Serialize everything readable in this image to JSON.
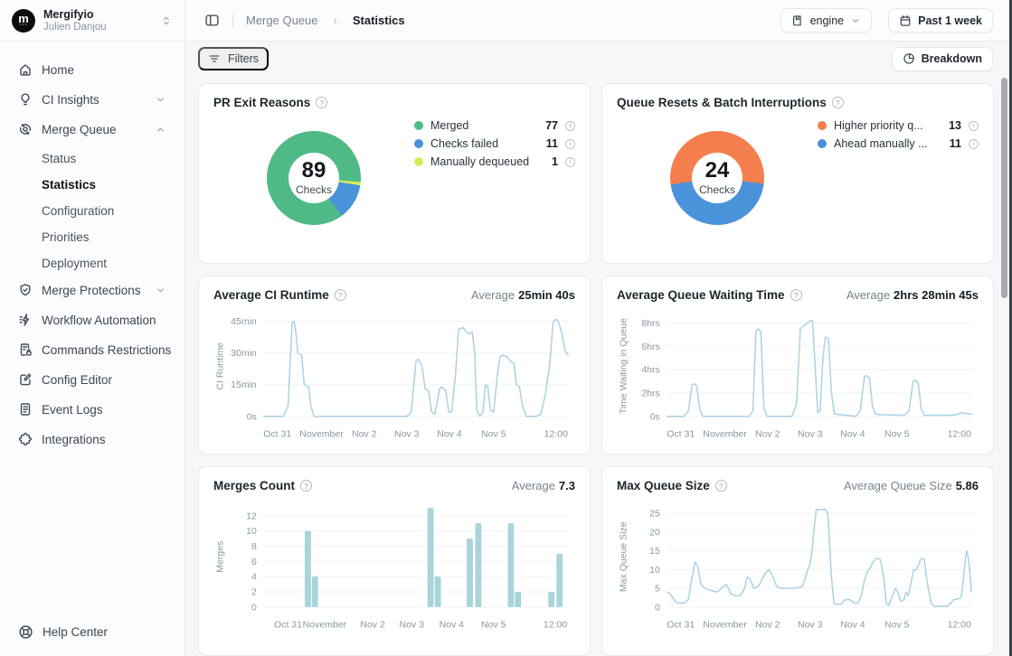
{
  "glyphs": {
    "help": "?",
    "info": "i",
    "breadcrumb_sep": "›",
    "avatar_letter": "m",
    "avatar_dots": "···"
  },
  "sidebar": {
    "account": {
      "org": "Mergifyio",
      "user": "Julien Danjou"
    },
    "items": [
      {
        "label": "Home",
        "icon": "home-icon"
      },
      {
        "label": "CI Insights",
        "icon": "lightbulb-icon",
        "chevron": "down"
      },
      {
        "label": "Merge Queue",
        "icon": "merge-queue-icon",
        "chevron": "up",
        "children": [
          "Status",
          "Statistics",
          "Configuration",
          "Priorities",
          "Deployment"
        ]
      },
      {
        "label": "Merge Protections",
        "icon": "shield-icon",
        "chevron": "down"
      },
      {
        "label": "Workflow Automation",
        "icon": "workflow-icon"
      },
      {
        "label": "Commands Restrictions",
        "icon": "commands-restrictions-icon"
      },
      {
        "label": "Config Editor",
        "icon": "config-editor-icon"
      },
      {
        "label": "Event Logs",
        "icon": "event-logs-icon"
      },
      {
        "label": "Integrations",
        "icon": "integrations-icon"
      }
    ],
    "active_item": "Statistics",
    "help_label": "Help Center"
  },
  "topbar": {
    "breadcrumb_parent": "Merge Queue",
    "breadcrumb_current": "Statistics",
    "repo_selector": "engine",
    "date_range": "Past 1 week"
  },
  "toolbar": {
    "filters_label": "Filters",
    "breakdown_label": "Breakdown"
  },
  "chart_data": [
    {
      "type": "pie",
      "title": "PR Exit Reasons",
      "center_value": "89",
      "center_label": "Checks",
      "start_angle": 95,
      "segments": [
        {
          "label": "Merged",
          "value": 77,
          "color": "#4fba85"
        },
        {
          "label": "Checks failed",
          "value": 11,
          "color": "#4a93da"
        },
        {
          "label": "Manually dequeued",
          "value": 1,
          "color": "#d9ed56"
        }
      ]
    },
    {
      "type": "pie",
      "title": "Queue Resets & Batch Interruptions",
      "center_value": "24",
      "center_label": "Checks",
      "start_angle": 97,
      "segments": [
        {
          "label": "Higher priority q...",
          "value": 13,
          "color": "#f47e4d"
        },
        {
          "label": "Ahead manually ...",
          "value": 11,
          "color": "#4a93da"
        }
      ]
    },
    {
      "type": "line",
      "title": "Average CI Runtime",
      "average_label": "Average",
      "average_value": "25min 40s",
      "ylabel": "CI Runtime",
      "ymax": 47.5,
      "line_color": "#aed3e5",
      "grid": true,
      "yticks": [
        {
          "v": 0,
          "label": "0s"
        },
        {
          "v": 15,
          "label": "15min"
        },
        {
          "v": 30,
          "label": "30min"
        },
        {
          "v": 45,
          "label": "45min"
        }
      ],
      "xticks": [
        {
          "x": 0.045,
          "label": "Oct 31"
        },
        {
          "x": 0.19,
          "label": "November"
        },
        {
          "x": 0.33,
          "label": "Nov 2"
        },
        {
          "x": 0.47,
          "label": "Nov 3"
        },
        {
          "x": 0.61,
          "label": "Nov 4"
        },
        {
          "x": 0.755,
          "label": "Nov 5"
        },
        {
          "x": 0.96,
          "label": "12:00"
        }
      ],
      "points": [
        [
          0,
          0
        ],
        [
          0.065,
          0
        ],
        [
          0.08,
          5
        ],
        [
          0.093,
          44
        ],
        [
          0.1,
          45
        ],
        [
          0.107,
          38
        ],
        [
          0.112,
          30
        ],
        [
          0.125,
          29
        ],
        [
          0.133,
          15
        ],
        [
          0.147,
          14
        ],
        [
          0.155,
          5
        ],
        [
          0.165,
          0
        ],
        [
          0.47,
          0
        ],
        [
          0.485,
          2
        ],
        [
          0.5,
          26
        ],
        [
          0.508,
          27
        ],
        [
          0.52,
          24
        ],
        [
          0.53,
          13
        ],
        [
          0.542,
          12
        ],
        [
          0.552,
          2
        ],
        [
          0.562,
          1
        ],
        [
          0.578,
          13
        ],
        [
          0.585,
          14
        ],
        [
          0.598,
          12
        ],
        [
          0.608,
          2
        ],
        [
          0.617,
          2
        ],
        [
          0.63,
          20
        ],
        [
          0.64,
          41
        ],
        [
          0.655,
          42
        ],
        [
          0.665,
          40
        ],
        [
          0.675,
          39
        ],
        [
          0.685,
          40
        ],
        [
          0.693,
          30
        ],
        [
          0.7,
          3
        ],
        [
          0.71,
          0
        ],
        [
          0.72,
          2
        ],
        [
          0.728,
          15
        ],
        [
          0.736,
          14
        ],
        [
          0.745,
          3
        ],
        [
          0.755,
          2
        ],
        [
          0.768,
          20
        ],
        [
          0.776,
          28
        ],
        [
          0.785,
          29
        ],
        [
          0.8,
          28
        ],
        [
          0.812,
          26
        ],
        [
          0.822,
          25
        ],
        [
          0.83,
          15
        ],
        [
          0.84,
          14
        ],
        [
          0.85,
          5
        ],
        [
          0.862,
          0
        ],
        [
          0.895,
          0
        ],
        [
          0.91,
          1
        ],
        [
          0.925,
          10
        ],
        [
          0.94,
          25
        ],
        [
          0.95,
          44
        ],
        [
          0.958,
          46
        ],
        [
          0.968,
          45
        ],
        [
          0.978,
          40
        ],
        [
          0.99,
          31
        ],
        [
          1,
          29
        ]
      ]
    },
    {
      "type": "line",
      "title": "Average Queue Waiting Time",
      "average_label": "Average",
      "average_value": "2hrs 28min 45s",
      "ylabel": "Time Waiting in Queue",
      "ymax": 8.6,
      "line_color": "#aed3e5",
      "grid": true,
      "yticks": [
        {
          "v": 0,
          "label": "0s"
        },
        {
          "v": 2,
          "label": "2hrs"
        },
        {
          "v": 4,
          "label": "4hrs"
        },
        {
          "v": 6,
          "label": "6hrs"
        },
        {
          "v": 8,
          "label": "8hrs"
        }
      ],
      "xticks": [
        {
          "x": 0.045,
          "label": "Oct 31"
        },
        {
          "x": 0.19,
          "label": "November"
        },
        {
          "x": 0.33,
          "label": "Nov 2"
        },
        {
          "x": 0.47,
          "label": "Nov 3"
        },
        {
          "x": 0.61,
          "label": "Nov 4"
        },
        {
          "x": 0.755,
          "label": "Nov 5"
        },
        {
          "x": 0.96,
          "label": "12:00"
        }
      ],
      "points": [
        [
          0,
          0
        ],
        [
          0.055,
          0
        ],
        [
          0.07,
          0.5
        ],
        [
          0.082,
          2.7
        ],
        [
          0.088,
          2.8
        ],
        [
          0.097,
          2.6
        ],
        [
          0.108,
          0.5
        ],
        [
          0.118,
          0
        ],
        [
          0.27,
          0
        ],
        [
          0.282,
          0.5
        ],
        [
          0.292,
          7.3
        ],
        [
          0.3,
          7.5
        ],
        [
          0.308,
          7.2
        ],
        [
          0.318,
          0.8
        ],
        [
          0.328,
          0
        ],
        [
          0.41,
          0
        ],
        [
          0.425,
          1
        ],
        [
          0.438,
          7.5
        ],
        [
          0.45,
          7.8
        ],
        [
          0.462,
          8
        ],
        [
          0.472,
          8.2
        ],
        [
          0.478,
          8.2
        ],
        [
          0.487,
          4
        ],
        [
          0.495,
          0.3
        ],
        [
          0.503,
          0.5
        ],
        [
          0.512,
          5
        ],
        [
          0.52,
          6.8
        ],
        [
          0.53,
          6.7
        ],
        [
          0.54,
          2
        ],
        [
          0.55,
          0.2
        ],
        [
          0.62,
          0
        ],
        [
          0.635,
          0.5
        ],
        [
          0.648,
          3.4
        ],
        [
          0.655,
          3.5
        ],
        [
          0.665,
          3.3
        ],
        [
          0.675,
          0.8
        ],
        [
          0.685,
          0.2
        ],
        [
          0.7,
          0.15
        ],
        [
          0.78,
          0.1
        ],
        [
          0.795,
          0.5
        ],
        [
          0.808,
          3
        ],
        [
          0.815,
          3.1
        ],
        [
          0.825,
          2.9
        ],
        [
          0.835,
          0.6
        ],
        [
          0.845,
          0.1
        ],
        [
          0.93,
          0.1
        ],
        [
          0.95,
          0.15
        ],
        [
          0.965,
          0.3
        ],
        [
          0.98,
          0.25
        ],
        [
          1,
          0.2
        ]
      ]
    },
    {
      "type": "bar",
      "title": "Merges Count",
      "average_label": "Average",
      "average_value": "7.3",
      "ylabel": "Merges",
      "ymax": 13.2,
      "bar_color": "#a8d4da",
      "grid": true,
      "yticks": [
        {
          "v": 0,
          "label": "0"
        },
        {
          "v": 2,
          "label": "2"
        },
        {
          "v": 4,
          "label": "4"
        },
        {
          "v": 6,
          "label": "6"
        },
        {
          "v": 8,
          "label": "8"
        },
        {
          "v": 10,
          "label": "10"
        },
        {
          "v": 12,
          "label": "12"
        }
      ],
      "xticks": [
        {
          "x": 0.08,
          "label": "Oct 31"
        },
        {
          "x": 0.2,
          "label": "November"
        },
        {
          "x": 0.358,
          "label": "Nov 2"
        },
        {
          "x": 0.486,
          "label": "Nov 3"
        },
        {
          "x": 0.617,
          "label": "Nov 4"
        },
        {
          "x": 0.755,
          "label": "Nov 5"
        },
        {
          "x": 0.958,
          "label": "12:00"
        }
      ],
      "bars": [
        {
          "x": 0.145,
          "v": 10
        },
        {
          "x": 0.168,
          "v": 4
        },
        {
          "x": 0.548,
          "v": 13
        },
        {
          "x": 0.572,
          "v": 4
        },
        {
          "x": 0.677,
          "v": 9
        },
        {
          "x": 0.705,
          "v": 11
        },
        {
          "x": 0.812,
          "v": 11
        },
        {
          "x": 0.835,
          "v": 2
        },
        {
          "x": 0.945,
          "v": 2
        },
        {
          "x": 0.972,
          "v": 7
        }
      ]
    },
    {
      "type": "line",
      "title": "Max Queue Size",
      "average_label": "Average Queue Size",
      "average_value": "5.86",
      "ylabel": "Max Queue Size",
      "ymax": 26.8,
      "line_color": "#aed3e5",
      "grid": true,
      "yticks": [
        {
          "v": 0,
          "label": "0"
        },
        {
          "v": 5,
          "label": "5"
        },
        {
          "v": 10,
          "label": "10"
        },
        {
          "v": 15,
          "label": "15"
        },
        {
          "v": 20,
          "label": "20"
        },
        {
          "v": 25,
          "label": "25"
        }
      ],
      "xticks": [
        {
          "x": 0.045,
          "label": "Oct 31"
        },
        {
          "x": 0.19,
          "label": "November"
        },
        {
          "x": 0.33,
          "label": "Nov 2"
        },
        {
          "x": 0.47,
          "label": "Nov 3"
        },
        {
          "x": 0.61,
          "label": "Nov 4"
        },
        {
          "x": 0.755,
          "label": "Nov 5"
        },
        {
          "x": 0.96,
          "label": "12:00"
        }
      ],
      "points": [
        [
          0,
          4
        ],
        [
          0.01,
          3.5
        ],
        [
          0.03,
          1.2
        ],
        [
          0.055,
          1
        ],
        [
          0.07,
          2
        ],
        [
          0.082,
          8
        ],
        [
          0.092,
          12
        ],
        [
          0.1,
          11
        ],
        [
          0.112,
          6
        ],
        [
          0.125,
          5
        ],
        [
          0.14,
          4.5
        ],
        [
          0.165,
          4
        ],
        [
          0.185,
          5.5
        ],
        [
          0.195,
          6
        ],
        [
          0.21,
          3.5
        ],
        [
          0.225,
          3
        ],
        [
          0.24,
          3
        ],
        [
          0.255,
          5
        ],
        [
          0.263,
          8
        ],
        [
          0.272,
          7.5
        ],
        [
          0.285,
          5
        ],
        [
          0.3,
          5.5
        ],
        [
          0.31,
          7
        ],
        [
          0.322,
          9
        ],
        [
          0.335,
          10
        ],
        [
          0.348,
          8
        ],
        [
          0.36,
          5.5
        ],
        [
          0.375,
          5
        ],
        [
          0.42,
          5
        ],
        [
          0.445,
          5.5
        ],
        [
          0.455,
          8
        ],
        [
          0.462,
          10
        ],
        [
          0.468,
          11
        ],
        [
          0.475,
          14
        ],
        [
          0.482,
          20
        ],
        [
          0.49,
          26
        ],
        [
          0.5,
          26
        ],
        [
          0.52,
          26
        ],
        [
          0.528,
          25
        ],
        [
          0.54,
          8
        ],
        [
          0.548,
          1
        ],
        [
          0.558,
          0.6
        ],
        [
          0.572,
          0.8
        ],
        [
          0.585,
          2
        ],
        [
          0.6,
          2
        ],
        [
          0.615,
          1
        ],
        [
          0.628,
          1.2
        ],
        [
          0.638,
          3
        ],
        [
          0.648,
          7
        ],
        [
          0.658,
          9.5
        ],
        [
          0.668,
          10.5
        ],
        [
          0.676,
          12
        ],
        [
          0.688,
          13
        ],
        [
          0.7,
          12.8
        ],
        [
          0.712,
          8
        ],
        [
          0.72,
          1
        ],
        [
          0.728,
          0.4
        ],
        [
          0.74,
          3
        ],
        [
          0.75,
          5
        ],
        [
          0.758,
          4
        ],
        [
          0.768,
          1.5
        ],
        [
          0.778,
          2
        ],
        [
          0.785,
          4
        ],
        [
          0.792,
          3
        ],
        [
          0.8,
          6
        ],
        [
          0.81,
          10
        ],
        [
          0.818,
          9.8
        ],
        [
          0.825,
          11
        ],
        [
          0.835,
          13
        ],
        [
          0.845,
          12.8
        ],
        [
          0.852,
          8
        ],
        [
          0.858,
          5
        ],
        [
          0.868,
          1
        ],
        [
          0.878,
          0.2
        ],
        [
          0.92,
          0.2
        ],
        [
          0.932,
          1
        ],
        [
          0.942,
          2
        ],
        [
          0.958,
          2.2
        ],
        [
          0.965,
          2.4
        ],
        [
          0.972,
          6
        ],
        [
          0.98,
          13
        ],
        [
          0.985,
          15
        ],
        [
          0.992,
          12
        ],
        [
          1,
          4
        ]
      ]
    }
  ]
}
